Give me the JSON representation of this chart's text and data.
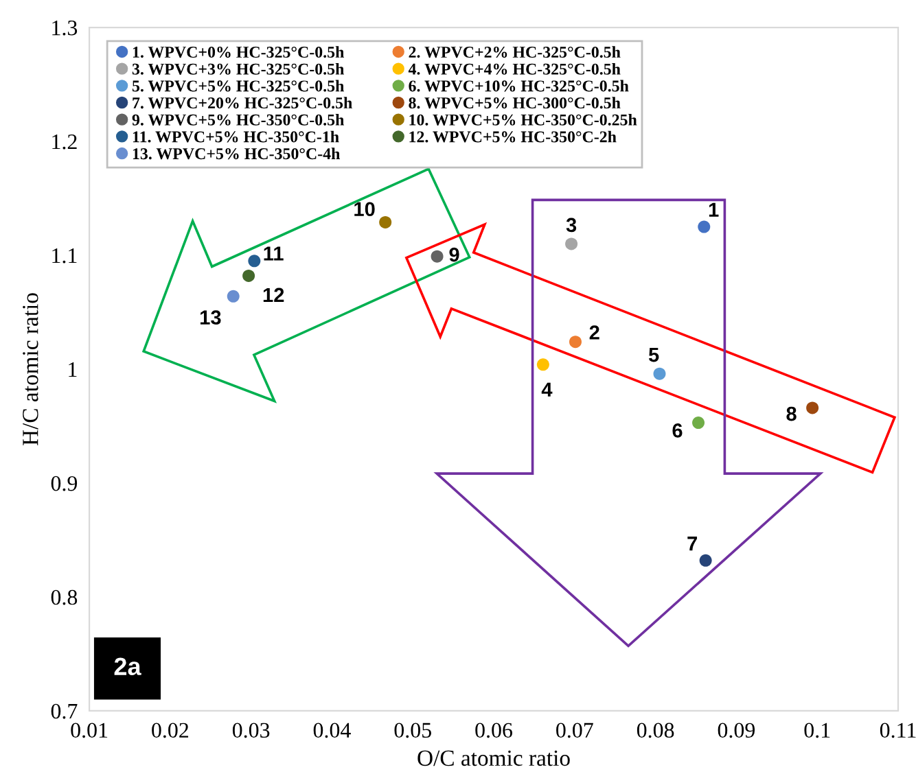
{
  "chart_data": {
    "type": "scatter",
    "xlabel": "O/C atomic ratio",
    "ylabel": "H/C atomic ratio",
    "xlim": [
      0.01,
      0.11
    ],
    "xticks": [
      0.01,
      0.02,
      0.03,
      0.04,
      0.05,
      0.06,
      0.07,
      0.08,
      0.09,
      0.1,
      0.11
    ],
    "ylim": [
      0.7,
      1.3
    ],
    "yticks": [
      0.7,
      0.8,
      0.9,
      1,
      1.1,
      1.2,
      1.3
    ],
    "grid": false,
    "legend": "top",
    "marker": "circle",
    "series": [
      {
        "name": "1. WPVC+0% HC-325°C-0.5h",
        "color": "#4472c4",
        "x": [
          0.086
        ],
        "values": [
          1.125
        ]
      },
      {
        "name": "2. WPVC+2% HC-325°C-0.5h",
        "color": "#ed7d31",
        "x": [
          0.0701
        ],
        "values": [
          1.024
        ]
      },
      {
        "name": "3. WPVC+3% HC-325°C-0.5h",
        "color": "#a5a5a5",
        "x": [
          0.0696
        ],
        "values": [
          1.11
        ]
      },
      {
        "name": "4. WPVC+4% HC-325°C-0.5h",
        "color": "#ffc000",
        "x": [
          0.0661
        ],
        "values": [
          1.004
        ]
      },
      {
        "name": "5. WPVC+5% HC-325°C-0.5h",
        "color": "#5b9bd5",
        "x": [
          0.0805
        ],
        "values": [
          0.996
        ]
      },
      {
        "name": "6. WPVC+10% HC-325°C-0.5h",
        "color": "#70ad47",
        "x": [
          0.0853
        ],
        "values": [
          0.953
        ]
      },
      {
        "name": "7. WPVC+20% HC-325°C-0.5h",
        "color": "#264478",
        "x": [
          0.0862
        ],
        "values": [
          0.832
        ]
      },
      {
        "name": "8. WPVC+5% HC-300°C-0.5h",
        "color": "#9e480e",
        "x": [
          0.0994
        ],
        "values": [
          0.966
        ]
      },
      {
        "name": "9. WPVC+5% HC-350°C-0.5h",
        "color": "#636363",
        "x": [
          0.053
        ],
        "values": [
          1.099
        ]
      },
      {
        "name": "10. WPVC+5% HC-350°C-0.25h",
        "color": "#997300",
        "x": [
          0.0466
        ],
        "values": [
          1.129
        ]
      },
      {
        "name": "11. WPVC+5% HC-350°C-1h",
        "color": "#255e91",
        "x": [
          0.0304
        ],
        "values": [
          1.095
        ]
      },
      {
        "name": "12. WPVC+5% HC-350°C-2h",
        "color": "#43682b",
        "x": [
          0.0297
        ],
        "values": [
          1.082
        ]
      },
      {
        "name": "13. WPVC+5% HC-350°C-4h",
        "color": "#698ed0",
        "x": [
          0.0278
        ],
        "values": [
          1.064
        ]
      }
    ],
    "annotations": [
      {
        "text": "1",
        "x": 0.086,
        "y": 1.125
      },
      {
        "text": "2",
        "x": 0.0701,
        "y": 1.024
      },
      {
        "text": "3",
        "x": 0.0696,
        "y": 1.11
      },
      {
        "text": "4",
        "x": 0.0661,
        "y": 1.004
      },
      {
        "text": "5",
        "x": 0.0805,
        "y": 0.996
      },
      {
        "text": "6",
        "x": 0.0853,
        "y": 0.953
      },
      {
        "text": "7",
        "x": 0.0862,
        "y": 0.832
      },
      {
        "text": "8",
        "x": 0.0994,
        "y": 0.966
      },
      {
        "text": "9",
        "x": 0.053,
        "y": 1.099
      },
      {
        "text": "10",
        "x": 0.0466,
        "y": 1.129
      },
      {
        "text": "11",
        "x": 0.0304,
        "y": 1.095
      },
      {
        "text": "12",
        "x": 0.0297,
        "y": 1.082
      },
      {
        "text": "13",
        "x": 0.0278,
        "y": 1.064
      },
      "2a"
    ]
  }
}
